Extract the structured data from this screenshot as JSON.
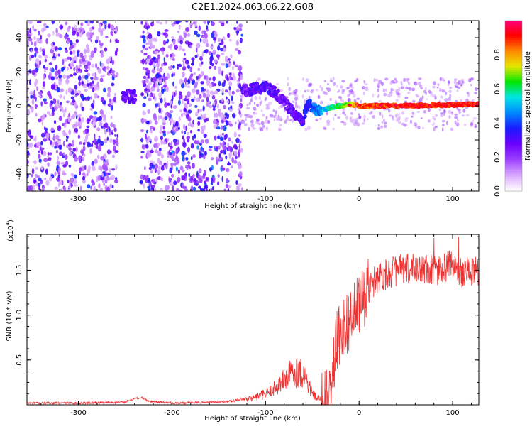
{
  "title": "C2E1.2024.063.06.22.G08",
  "chart_data": [
    {
      "type": "heatmap",
      "title": "",
      "xlabel": "Height of straight line (km)",
      "ylabel": "Frequency (Hz)",
      "xlim": [
        -355,
        128
      ],
      "ylim": [
        -50,
        50
      ],
      "x_ticks": [
        -300,
        -200,
        -100,
        0,
        100
      ],
      "y_ticks": [
        -40,
        -20,
        0,
        20,
        40
      ],
      "colorbar": {
        "label": "Normalized spectral amplitude",
        "range": [
          0,
          1
        ],
        "ticks": [
          0.0,
          0.2,
          0.4,
          0.6,
          0.8
        ],
        "colors": [
          "#ffffff",
          "#d9a6ff",
          "#9b40ff",
          "#6a00ff",
          "#1a1aff",
          "#0088ff",
          "#00e6e6",
          "#00e600",
          "#e6e600",
          "#ff8800",
          "#ff0000",
          "#ff007f"
        ]
      },
      "features": {
        "noise_region_x": [
          -355,
          -125
        ],
        "noise_gap_x": [
          -258,
          -233
        ],
        "signal_track": [
          {
            "x": -250,
            "freq": 5,
            "amp": 0.3
          },
          {
            "x": -240,
            "freq": 5,
            "amp": 0.3
          },
          {
            "x": -120,
            "freq": 9,
            "amp": 0.25
          },
          {
            "x": -100,
            "freq": 11,
            "amp": 0.3
          },
          {
            "x": -90,
            "freq": 8,
            "amp": 0.28
          },
          {
            "x": -80,
            "freq": 2,
            "amp": 0.25
          },
          {
            "x": -70,
            "freq": -4,
            "amp": 0.28
          },
          {
            "x": -60,
            "freq": -9,
            "amp": 0.3
          },
          {
            "x": -55,
            "freq": 2,
            "amp": 0.35
          },
          {
            "x": -45,
            "freq": -3,
            "amp": 0.45
          },
          {
            "x": -30,
            "freq": -1,
            "amp": 0.55
          },
          {
            "x": -10,
            "freq": 1,
            "amp": 0.7
          },
          {
            "x": 0,
            "freq": 0,
            "amp": 0.85
          },
          {
            "x": 50,
            "freq": 0,
            "amp": 0.9
          },
          {
            "x": 128,
            "freq": 1,
            "amp": 0.9
          }
        ]
      }
    },
    {
      "type": "line",
      "title": "",
      "xlabel": "Height of straight line (km)",
      "ylabel": "SNR (10 * v/v)",
      "y_multiplier": "(x10",
      "y_multiplier_exp": "4",
      "y_multiplier_close": ")",
      "xlim": [
        -355,
        128
      ],
      "ylim": [
        0,
        1.9
      ],
      "x_ticks": [
        -300,
        -200,
        -100,
        0,
        100
      ],
      "y_ticks": [
        0.5,
        1.0,
        1.5
      ],
      "color": "#ee3333",
      "series": [
        {
          "x": [
            -355,
            -300,
            -250,
            -240,
            -232,
            -225,
            -200,
            -150,
            -120,
            -100,
            -90,
            -80,
            -70,
            -60,
            -55,
            -50,
            -45,
            -40,
            -35,
            -30,
            -25,
            -20,
            -10,
            0,
            10,
            20,
            40,
            60,
            80,
            100,
            110,
            128
          ],
          "values": [
            0.02,
            0.02,
            0.03,
            0.07,
            0.08,
            0.04,
            0.02,
            0.03,
            0.06,
            0.12,
            0.18,
            0.28,
            0.38,
            0.35,
            0.25,
            0.12,
            0.08,
            0.06,
            0.05,
            0.12,
            0.65,
            0.82,
            0.95,
            1.1,
            1.3,
            1.43,
            1.5,
            1.52,
            1.5,
            1.55,
            1.48,
            1.5
          ]
        }
      ]
    }
  ]
}
